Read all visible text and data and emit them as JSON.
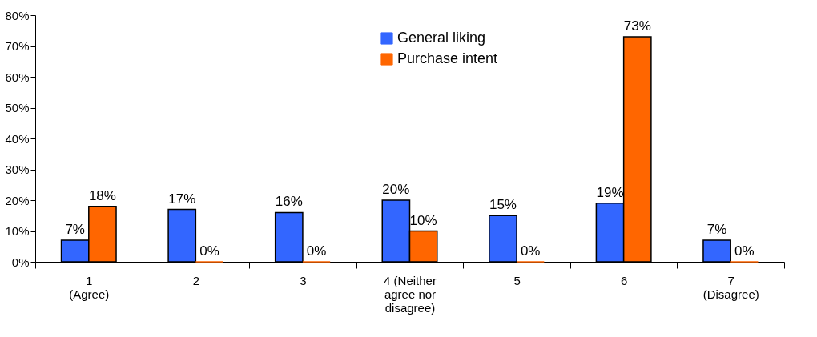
{
  "chart_data": {
    "type": "bar",
    "categories": [
      "1\n(Agree)",
      "2",
      "3",
      "4   (Neither\nagree nor\ndisagree)",
      "5",
      "6",
      "7\n(Disagree)"
    ],
    "series": [
      {
        "name": "General liking",
        "color": "#3366ff",
        "values": [
          7,
          17,
          16,
          20,
          15,
          19,
          7
        ],
        "value_labels": [
          "7%",
          "17%",
          "16%",
          "20%",
          "15%",
          "19%",
          "7%"
        ]
      },
      {
        "name": "Purchase intent",
        "color": "#ff6600",
        "values": [
          18,
          0,
          0,
          10,
          0,
          73,
          0
        ],
        "value_labels": [
          "18%",
          "0%",
          "0%",
          "10%",
          "0%",
          "73%",
          "0%"
        ]
      }
    ],
    "ylim": [
      0,
      80
    ],
    "yticks": [
      {
        "value": 0,
        "label": "0%"
      },
      {
        "value": 10,
        "label": "10%"
      },
      {
        "value": 20,
        "label": "20%"
      },
      {
        "value": 30,
        "label": "30%"
      },
      {
        "value": 40,
        "label": "40%"
      },
      {
        "value": 50,
        "label": "50%"
      },
      {
        "value": 60,
        "label": "60%"
      },
      {
        "value": 70,
        "label": "70%"
      },
      {
        "value": 80,
        "label": "80%"
      }
    ],
    "grid": false,
    "legend": "top right"
  }
}
